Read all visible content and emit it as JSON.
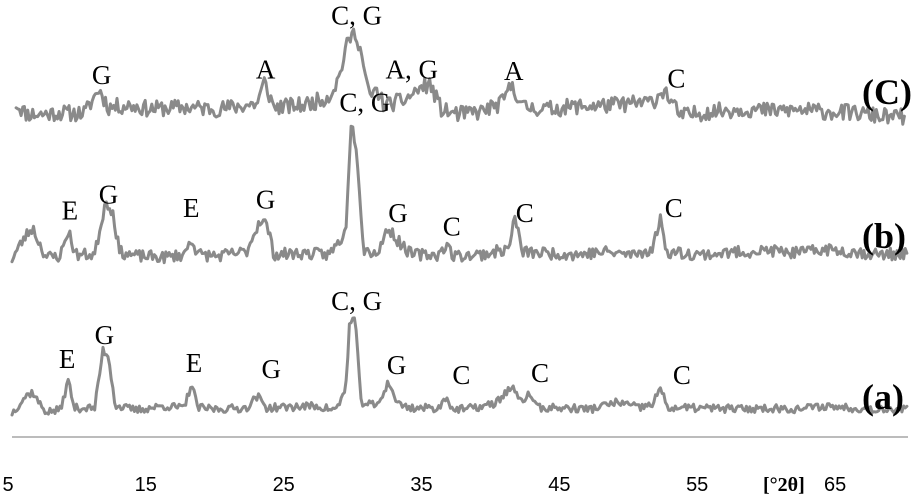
{
  "chart_data": {
    "type": "line",
    "title": "",
    "xlabel": "[°2θ]",
    "ylabel": "",
    "xlim": [
      5,
      70
    ],
    "x_ticks": [
      5,
      15,
      25,
      35,
      45,
      55,
      65
    ],
    "grid": false,
    "series": [
      {
        "name": "(C)",
        "noise": 0.45,
        "seed": 11,
        "values": [
          [
            5.3,
            0.8
          ],
          [
            6.0,
            0.25
          ],
          [
            7.0,
            0.2
          ],
          [
            8.5,
            0.3
          ],
          [
            9.5,
            0.25
          ],
          [
            10.3,
            0.3
          ],
          [
            11.3,
            1.6
          ],
          [
            12.0,
            0.6
          ],
          [
            13.5,
            0.7
          ],
          [
            15.0,
            0.5
          ],
          [
            17.5,
            0.6
          ],
          [
            20.0,
            0.5
          ],
          [
            22.8,
            0.8
          ],
          [
            23.3,
            2.0
          ],
          [
            24.0,
            0.6
          ],
          [
            26.0,
            0.7
          ],
          [
            27.0,
            0.9
          ],
          [
            28.0,
            1.2
          ],
          [
            28.7,
            2.2
          ],
          [
            29.2,
            3.8
          ],
          [
            29.6,
            4.6
          ],
          [
            30.0,
            4.7
          ],
          [
            30.4,
            3.3
          ],
          [
            30.9,
            1.2
          ],
          [
            31.5,
            1.5
          ],
          [
            32.0,
            0.7
          ],
          [
            33.5,
            1.0
          ],
          [
            34.5,
            1.6
          ],
          [
            35.3,
            1.9
          ],
          [
            36.2,
            0.4
          ],
          [
            37.5,
            0.2
          ],
          [
            39.0,
            0.35
          ],
          [
            40.5,
            0.8
          ],
          [
            41.3,
            1.9
          ],
          [
            42.0,
            0.6
          ],
          [
            44.0,
            0.5
          ],
          [
            46.0,
            0.65
          ],
          [
            48.0,
            0.7
          ],
          [
            50.0,
            0.8
          ],
          [
            51.5,
            0.9
          ],
          [
            52.3,
            1.6
          ],
          [
            52.9,
            0.8
          ],
          [
            53.5,
            0.1
          ],
          [
            55.5,
            0.35
          ],
          [
            58.0,
            0.5
          ],
          [
            60.0,
            0.4
          ],
          [
            62.0,
            0.45
          ],
          [
            64.0,
            0.35
          ],
          [
            66.0,
            0.3
          ],
          [
            67.5,
            0.15
          ],
          [
            69.0,
            0.05
          ],
          [
            69.8,
            0.1
          ]
        ],
        "peaks": [
          {
            "text": "G",
            "x": 11.5,
            "y": 1.9
          },
          {
            "text": "A",
            "x": 23.4,
            "y": 2.2
          },
          {
            "text": "C, G",
            "x": 30.0,
            "y": 5.2
          },
          {
            "text": "A, G",
            "x": 34.0,
            "y": 2.2
          },
          {
            "text": "A",
            "x": 41.4,
            "y": 2.1
          },
          {
            "text": "C",
            "x": 53.2,
            "y": 1.7
          }
        ]
      },
      {
        "name": "(b)",
        "noise": 0.22,
        "seed": 23,
        "values": [
          [
            5.0,
            0.05
          ],
          [
            6.0,
            0.9
          ],
          [
            6.5,
            1.2
          ],
          [
            7.0,
            0.6
          ],
          [
            7.5,
            0.1
          ],
          [
            8.5,
            0.15
          ],
          [
            9.1,
            1.1
          ],
          [
            9.6,
            0.2
          ],
          [
            11.0,
            0.2
          ],
          [
            11.8,
            2.2
          ],
          [
            12.3,
            1.8
          ],
          [
            12.8,
            0.3
          ],
          [
            14.0,
            0.15
          ],
          [
            16.0,
            0.1
          ],
          [
            17.5,
            0.2
          ],
          [
            18.0,
            0.8
          ],
          [
            18.5,
            0.2
          ],
          [
            20.0,
            0.15
          ],
          [
            22.0,
            0.3
          ],
          [
            23.0,
            1.5
          ],
          [
            23.5,
            1.3
          ],
          [
            24.0,
            0.2
          ],
          [
            26.0,
            0.25
          ],
          [
            28.0,
            0.2
          ],
          [
            29.2,
            1.0
          ],
          [
            29.6,
            5.1
          ],
          [
            30.0,
            4.2
          ],
          [
            30.5,
            0.4
          ],
          [
            31.5,
            0.25
          ],
          [
            32.3,
            1.2
          ],
          [
            33.0,
            0.7
          ],
          [
            34.0,
            0.2
          ],
          [
            36.0,
            0.2
          ],
          [
            36.5,
            0.6
          ],
          [
            37.0,
            0.15
          ],
          [
            39.0,
            0.2
          ],
          [
            41.0,
            0.4
          ],
          [
            41.5,
            1.6
          ],
          [
            42.0,
            0.3
          ],
          [
            44.0,
            0.25
          ],
          [
            46.0,
            0.2
          ],
          [
            48.0,
            0.3
          ],
          [
            50.0,
            0.2
          ],
          [
            51.5,
            0.4
          ],
          [
            52.0,
            1.6
          ],
          [
            52.5,
            0.3
          ],
          [
            55.0,
            0.2
          ],
          [
            58.0,
            0.3
          ],
          [
            60.0,
            0.35
          ],
          [
            62.0,
            0.25
          ],
          [
            64.0,
            0.4
          ],
          [
            66.0,
            0.3
          ],
          [
            68.0,
            0.2
          ],
          [
            70.0,
            0.25
          ]
        ],
        "peaks": [
          {
            "text": "E",
            "x": 9.2,
            "y": 1.5
          },
          {
            "text": "G",
            "x": 12.0,
            "y": 2.1
          },
          {
            "text": "E",
            "x": 18.0,
            "y": 1.6
          },
          {
            "text": "G",
            "x": 23.4,
            "y": 1.9
          },
          {
            "text": "C, G",
            "x": 30.6,
            "y": 5.5
          },
          {
            "text": "G",
            "x": 33.0,
            "y": 1.4
          },
          {
            "text": "C",
            "x": 36.9,
            "y": 0.9
          },
          {
            "text": "C",
            "x": 42.2,
            "y": 1.4
          },
          {
            "text": "C",
            "x": 53.0,
            "y": 1.6
          }
        ]
      },
      {
        "name": "(a)",
        "noise": 0.2,
        "seed": 37,
        "values": [
          [
            5.0,
            0.05
          ],
          [
            6.0,
            0.9
          ],
          [
            6.5,
            1.1
          ],
          [
            7.0,
            0.5
          ],
          [
            7.5,
            0.1
          ],
          [
            8.5,
            0.2
          ],
          [
            9.1,
            1.7
          ],
          [
            9.5,
            0.3
          ],
          [
            11.0,
            0.3
          ],
          [
            11.6,
            3.2
          ],
          [
            12.0,
            2.9
          ],
          [
            12.5,
            0.4
          ],
          [
            14.0,
            0.2
          ],
          [
            16.0,
            0.4
          ],
          [
            17.5,
            0.3
          ],
          [
            18.0,
            1.5
          ],
          [
            18.5,
            0.3
          ],
          [
            20.0,
            0.25
          ],
          [
            22.0,
            0.3
          ],
          [
            22.8,
            0.9
          ],
          [
            23.5,
            0.3
          ],
          [
            25.0,
            0.35
          ],
          [
            27.0,
            0.4
          ],
          [
            28.5,
            0.2
          ],
          [
            29.2,
            1.2
          ],
          [
            29.5,
            4.6
          ],
          [
            29.9,
            4.8
          ],
          [
            30.3,
            0.6
          ],
          [
            31.5,
            0.4
          ],
          [
            32.3,
            1.6
          ],
          [
            33.0,
            0.5
          ],
          [
            34.0,
            0.3
          ],
          [
            36.0,
            0.3
          ],
          [
            36.5,
            0.9
          ],
          [
            37.0,
            0.2
          ],
          [
            38.5,
            0.3
          ],
          [
            40.0,
            0.5
          ],
          [
            41.3,
            1.4
          ],
          [
            41.8,
            0.6
          ],
          [
            42.6,
            1.0
          ],
          [
            43.2,
            0.3
          ],
          [
            45.0,
            0.3
          ],
          [
            47.0,
            0.25
          ],
          [
            49.0,
            0.6
          ],
          [
            50.5,
            0.3
          ],
          [
            51.5,
            0.5
          ],
          [
            52.0,
            1.3
          ],
          [
            52.6,
            0.3
          ],
          [
            55.0,
            0.3
          ],
          [
            58.0,
            0.25
          ],
          [
            60.0,
            0.3
          ],
          [
            62.0,
            0.25
          ],
          [
            64.0,
            0.4
          ],
          [
            66.0,
            0.3
          ],
          [
            68.0,
            0.25
          ],
          [
            70.0,
            0.3
          ]
        ],
        "peaks": [
          {
            "text": "E",
            "x": 9.0,
            "y": 2.3
          },
          {
            "text": "G",
            "x": 11.7,
            "y": 3.5
          },
          {
            "text": "E",
            "x": 18.2,
            "y": 2.1
          },
          {
            "text": "G",
            "x": 23.8,
            "y": 1.8
          },
          {
            "text": "C, G",
            "x": 30.0,
            "y": 5.2
          },
          {
            "text": "G",
            "x": 32.9,
            "y": 2.0
          },
          {
            "text": "C",
            "x": 37.6,
            "y": 1.5
          },
          {
            "text": "C",
            "x": 43.3,
            "y": 1.6
          },
          {
            "text": "C",
            "x": 53.6,
            "y": 1.5
          }
        ]
      }
    ]
  }
}
